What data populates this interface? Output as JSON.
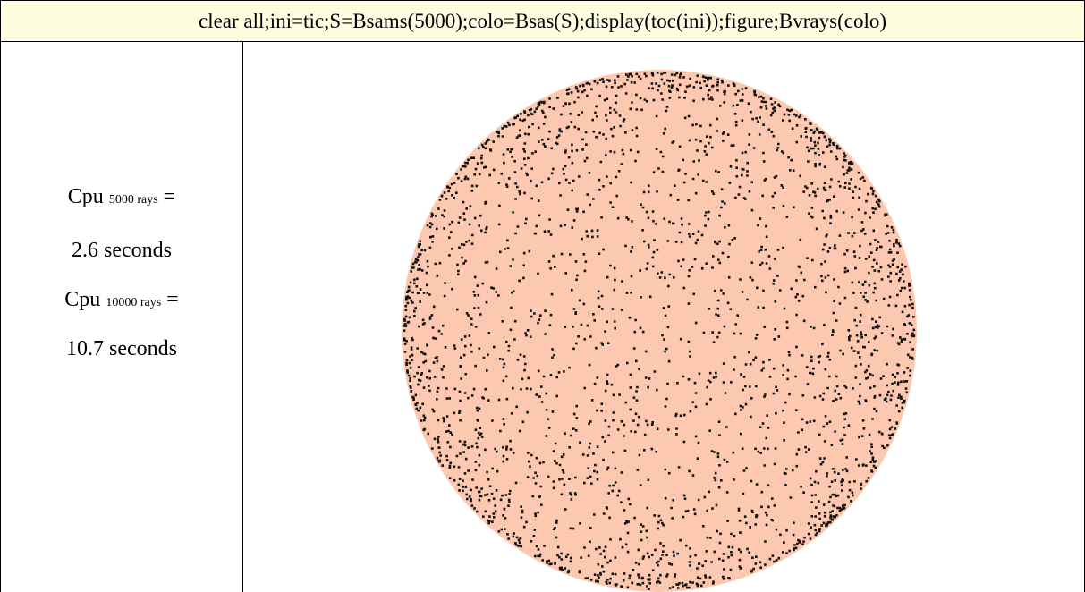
{
  "header": {
    "code": "clear all;ini=tic;S=Bsams(5000);colo=Bsas(S);display(toc(ini));figure;Bvrays(colo)"
  },
  "results": [
    {
      "label": "Cpu",
      "subscript": "5000 rays",
      "suffix": "=",
      "time": "2.6 seconds"
    },
    {
      "label": "Cpu",
      "subscript": "10000 rays",
      "suffix": "=",
      "time": "10.7 seconds"
    }
  ]
}
